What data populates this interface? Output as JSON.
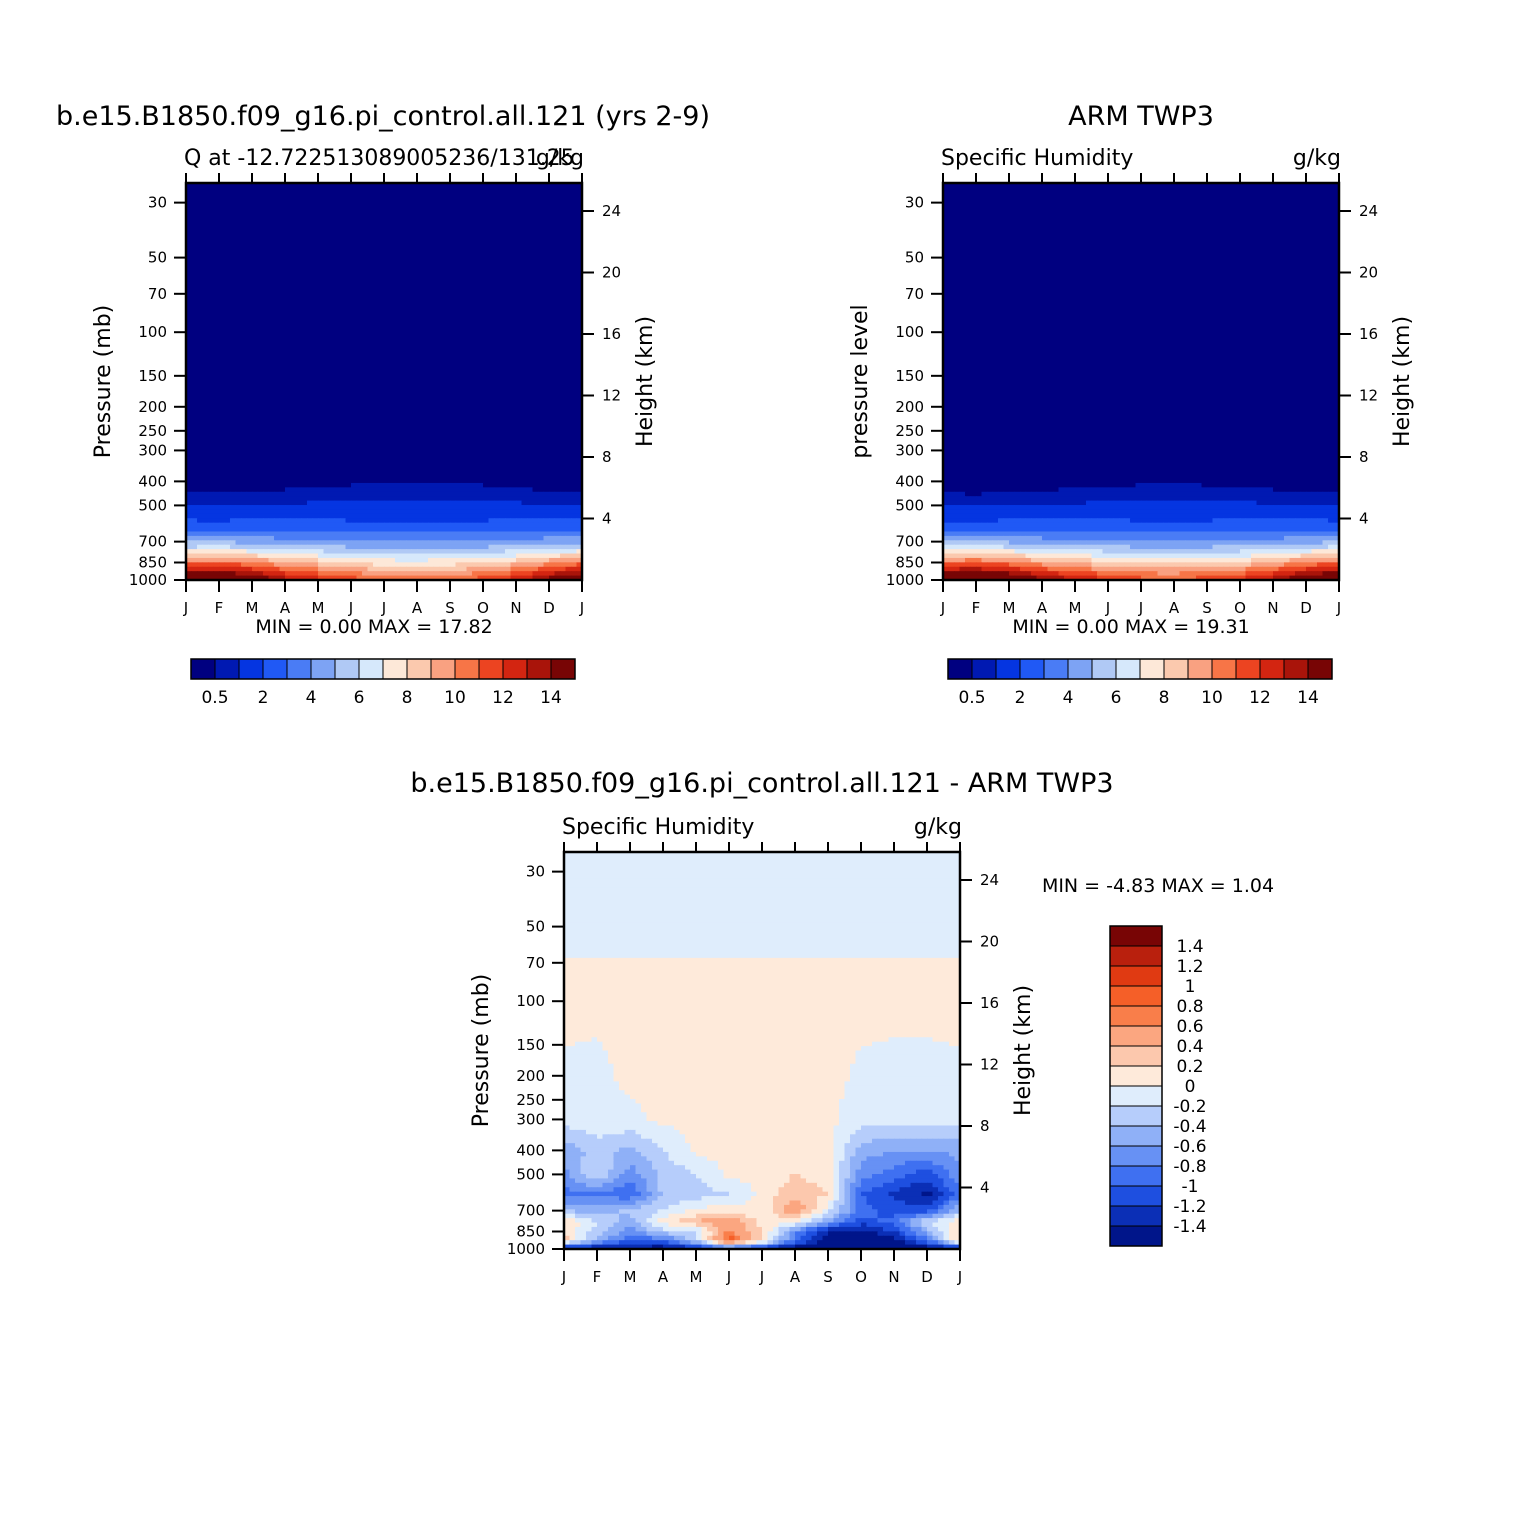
{
  "panels": [
    {
      "title": "b.e15.B1850.f09_g16.pi_control.all.121 (yrs 2-9)",
      "left_string": "Q at -12.722513089005236/131.25",
      "units": "g/kg",
      "ylabel": "Pressure (mb)",
      "right_ylabel": "Height (km)",
      "min_max_text": "MIN =   0.00  MAX =   17.82"
    },
    {
      "title": "ARM TWP3",
      "left_string": "Specific Humidity",
      "units": "g/kg",
      "ylabel": "pressure level",
      "right_ylabel": "Height (km)",
      "min_max_text": "MIN =   0.00  MAX =   19.31"
    },
    {
      "title": "b.e15.B1850.f09_g16.pi_control.all.121 - ARM TWP3",
      "left_string": "Specific Humidity",
      "units": "g/kg",
      "ylabel": "Pressure (mb)",
      "right_ylabel": "Height (km)",
      "min_max_text": "MIN =  -4.83  MAX =    1.04"
    }
  ],
  "colorbars": {
    "absolute": {
      "colors": [
        "#000080",
        "#0019b2",
        "#0535e1",
        "#2059f5",
        "#4a7cf5",
        "#7da3f4",
        "#b0c9f5",
        "#d6e8fb",
        "#fde8d8",
        "#fbc9ae",
        "#f9a181",
        "#f77547",
        "#ec4421",
        "#d32511",
        "#a9140a",
        "#780505"
      ],
      "labels": [
        "0.5",
        "2",
        "4",
        "6",
        "8",
        "10",
        "12",
        "14"
      ]
    },
    "difference": {
      "colors": [
        "#780505",
        "#b9200d",
        "#e03a12",
        "#f55f28",
        "#f97e4a",
        "#fba680",
        "#fcc8ad",
        "#feeada",
        "#dfedfc",
        "#b6cdfb",
        "#8fb0f7",
        "#6791f4",
        "#3f70f1",
        "#1e4fe0",
        "#0b2fb6",
        "#00158a"
      ],
      "labels": [
        "1.4",
        "1.2",
        "1",
        "0.8",
        "0.6",
        "0.4",
        "0.2",
        "0",
        "-0.2",
        "-0.4",
        "-0.6",
        "-0.8",
        "-1",
        "-1.2",
        "-1.4"
      ]
    }
  },
  "chart_data": [
    {
      "type": "heatmap",
      "title": "b.e15.B1850.f09_g16.pi_control.all.121 (yrs 2-9)",
      "subtitle": "Q at -12.722513089005236/131.25",
      "units": "g/kg",
      "xlabel": "",
      "ylabel": "Pressure (mb)",
      "right_ylabel": "Height (km)",
      "x_ticks": [
        "J",
        "F",
        "M",
        "A",
        "M",
        "J",
        "J",
        "A",
        "S",
        "O",
        "N",
        "D",
        "J"
      ],
      "y_ticks": [
        30,
        50,
        70,
        100,
        150,
        200,
        250,
        300,
        400,
        500,
        700,
        850,
        1000
      ],
      "y_scale": "log",
      "ylim": [
        1000,
        25
      ],
      "right_ticks": [
        4,
        8,
        12,
        16,
        20,
        24
      ],
      "levels": [
        0.5,
        1,
        2,
        3,
        4,
        5,
        6,
        7,
        8,
        9,
        10,
        11,
        12,
        13,
        14
      ],
      "x": [
        0,
        1,
        2,
        3,
        4,
        5,
        6,
        7,
        8,
        9,
        10,
        11,
        12
      ],
      "profile_pressure": [
        25,
        30,
        50,
        70,
        100,
        150,
        200,
        250,
        300,
        350,
        400,
        450,
        500,
        550,
        600,
        650,
        700,
        750,
        800,
        850,
        900,
        950,
        1000
      ],
      "profile_base": [
        0.004,
        0.004,
        0.004,
        0.005,
        0.006,
        0.01,
        0.03,
        0.07,
        0.18,
        0.32,
        0.5,
        0.9,
        1.4,
        2.1,
        2.9,
        3.9,
        5.2,
        6.7,
        8.3,
        10.0,
        11.6,
        13.2,
        14.6
      ],
      "monthly_moisture_factor": [
        1.1,
        1.14,
        1.06,
        0.93,
        0.86,
        0.79,
        0.74,
        0.73,
        0.75,
        0.79,
        0.87,
        1.0,
        1.1
      ],
      "min": 0.0,
      "max": 17.82
    },
    {
      "type": "heatmap",
      "title": "ARM TWP3",
      "subtitle": "Specific Humidity",
      "units": "g/kg",
      "xlabel": "",
      "ylabel": "pressure level",
      "right_ylabel": "Height (km)",
      "x_ticks": [
        "J",
        "F",
        "M",
        "A",
        "M",
        "J",
        "J",
        "A",
        "S",
        "O",
        "N",
        "D",
        "J"
      ],
      "y_ticks": [
        30,
        50,
        70,
        100,
        150,
        200,
        250,
        300,
        400,
        500,
        700,
        850,
        1000
      ],
      "y_scale": "log",
      "ylim": [
        1000,
        25
      ],
      "right_ticks": [
        4,
        8,
        12,
        16,
        20,
        24
      ],
      "levels": [
        0.5,
        1,
        2,
        3,
        4,
        5,
        6,
        7,
        8,
        9,
        10,
        11,
        12,
        13,
        14
      ],
      "x": [
        0,
        1,
        2,
        3,
        4,
        5,
        6,
        7,
        8,
        9,
        10,
        11,
        12
      ],
      "profile_pressure": [
        25,
        30,
        50,
        70,
        100,
        150,
        200,
        250,
        300,
        350,
        400,
        450,
        500,
        550,
        600,
        650,
        700,
        750,
        800,
        850,
        900,
        950,
        1000
      ],
      "profile_base": [
        0.004,
        0.004,
        0.004,
        0.005,
        0.006,
        0.01,
        0.03,
        0.07,
        0.18,
        0.32,
        0.5,
        0.9,
        1.4,
        2.1,
        2.9,
        3.9,
        5.2,
        6.7,
        8.3,
        10.0,
        11.6,
        13.2,
        14.6
      ],
      "monthly_moisture_factor": [
        1.14,
        1.16,
        1.1,
        0.97,
        0.9,
        0.83,
        0.78,
        0.77,
        0.79,
        0.84,
        0.93,
        1.06,
        1.14
      ],
      "min": 0.0,
      "max": 19.31
    },
    {
      "type": "heatmap",
      "title": "b.e15.B1850.f09_g16.pi_control.all.121 - ARM TWP3",
      "subtitle": "Specific Humidity",
      "units": "g/kg",
      "xlabel": "",
      "ylabel": "Pressure (mb)",
      "right_ylabel": "Height (km)",
      "x_ticks": [
        "J",
        "F",
        "M",
        "A",
        "M",
        "J",
        "J",
        "A",
        "S",
        "O",
        "N",
        "D",
        "J"
      ],
      "y_ticks": [
        30,
        50,
        70,
        100,
        150,
        200,
        250,
        300,
        400,
        500,
        700,
        850,
        1000
      ],
      "y_scale": "log",
      "ylim": [
        1000,
        25
      ],
      "right_ticks": [
        4,
        8,
        12,
        16,
        20,
        24
      ],
      "levels": [
        -1.4,
        -1.2,
        -1.0,
        -0.8,
        -0.6,
        -0.4,
        -0.2,
        0,
        0.2,
        0.4,
        0.6,
        0.8,
        1.0,
        1.2,
        1.4
      ],
      "x": [
        0,
        1,
        2,
        3,
        4,
        5,
        6,
        7,
        8,
        9,
        10,
        11,
        12
      ],
      "pressure": [
        25,
        50,
        100,
        200,
        300,
        400,
        500,
        600,
        700,
        775,
        850,
        925,
        1000
      ],
      "values": [
        [
          -0.05,
          -0.05,
          -0.05,
          -0.05,
          -0.05,
          -0.05,
          -0.05,
          -0.05,
          -0.05,
          -0.05,
          -0.05,
          -0.05,
          -0.05
        ],
        [
          -0.04,
          -0.04,
          -0.04,
          -0.04,
          -0.04,
          -0.04,
          -0.04,
          -0.04,
          -0.04,
          -0.04,
          -0.04,
          -0.04,
          -0.04
        ],
        [
          0.05,
          0.05,
          0.05,
          0.05,
          0.05,
          0.05,
          0.05,
          0.05,
          0.05,
          0.05,
          0.05,
          0.05,
          0.05
        ],
        [
          -0.03,
          -0.05,
          0.05,
          0.05,
          0.05,
          0.05,
          0.05,
          0.05,
          0.05,
          -0.03,
          -0.05,
          -0.05,
          -0.03
        ],
        [
          -0.1,
          -0.05,
          -0.05,
          0.05,
          0.05,
          0.05,
          0.05,
          0.05,
          0.05,
          -0.1,
          -0.1,
          -0.1,
          -0.1
        ],
        [
          -0.55,
          -0.3,
          -0.45,
          -0.2,
          0.05,
          0.05,
          0.05,
          0.05,
          0.05,
          -0.5,
          -0.6,
          -0.6,
          -0.55
        ],
        [
          -0.65,
          -0.2,
          -0.7,
          -0.35,
          -0.2,
          0.05,
          0.05,
          0.2,
          0.1,
          -0.7,
          -0.9,
          -1.1,
          -0.65
        ],
        [
          -0.9,
          -0.8,
          -1.0,
          -0.35,
          -0.3,
          -0.2,
          0.05,
          0.35,
          0.2,
          -1.0,
          -1.25,
          -1.45,
          -0.9
        ],
        [
          -0.4,
          -0.5,
          -0.35,
          -0.2,
          0.05,
          0.1,
          0.05,
          0.6,
          -0.1,
          -0.9,
          -1.1,
          -1.1,
          -0.4
        ],
        [
          0.15,
          -0.2,
          -0.5,
          0.1,
          0.4,
          0.6,
          0.1,
          0.1,
          -0.6,
          -1.1,
          -0.9,
          -0.2,
          0.15
        ],
        [
          0.2,
          -0.3,
          -0.7,
          -0.3,
          -0.2,
          0.6,
          0.2,
          -0.7,
          -1.4,
          -1.5,
          -1.2,
          -0.5,
          0.2
        ],
        [
          0.3,
          -0.5,
          -1.0,
          -0.9,
          -0.3,
          1.0,
          0.2,
          -0.9,
          -1.6,
          -1.7,
          -1.5,
          -0.9,
          0.3
        ],
        [
          -1.5,
          -1.5,
          -1.5,
          -1.6,
          -1.4,
          -1.1,
          -1.3,
          -1.6,
          -1.8,
          -1.8,
          -1.7,
          -1.6,
          -1.5
        ]
      ],
      "min": -4.83,
      "max": 1.04
    }
  ]
}
